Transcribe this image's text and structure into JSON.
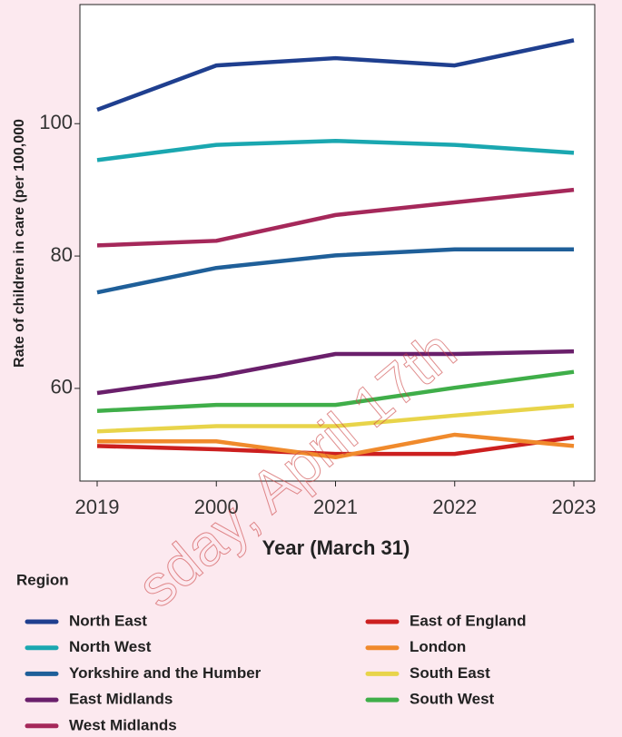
{
  "chart_data": {
    "type": "line",
    "x_label": "Year (March 31)",
    "y_label": "Rate of children in care (per 100,000",
    "categories": [
      "2019",
      "2000",
      "2021",
      "2022",
      "2023"
    ],
    "ylim": [
      46,
      118
    ],
    "yticks": [
      60,
      80,
      100
    ],
    "legend_title": "Region",
    "annotation": "sday, April 17th",
    "series": [
      {
        "name": "North East",
        "color": "#1f3f8f",
        "values": [
          102.1,
          108.8,
          109.9,
          108.8,
          112.6
        ]
      },
      {
        "name": "North West",
        "color": "#1aa7b0",
        "values": [
          94.5,
          96.8,
          97.4,
          96.8,
          95.6
        ]
      },
      {
        "name": "Yorkshire and the Humber",
        "color": "#1f5f99",
        "values": [
          74.5,
          78.2,
          80.1,
          81.0,
          81.0
        ]
      },
      {
        "name": "East Midlands",
        "color": "#6a1f6b",
        "values": [
          59.3,
          61.8,
          65.2,
          65.2,
          65.6
        ]
      },
      {
        "name": "West Midlands",
        "color": "#a5285a",
        "values": [
          81.6,
          82.3,
          86.2,
          88.1,
          90.0
        ]
      },
      {
        "name": "East of England",
        "color": "#cc1f1f",
        "values": [
          51.3,
          50.8,
          50.1,
          50.1,
          52.6
        ]
      },
      {
        "name": "London",
        "color": "#f08a2c",
        "values": [
          52.0,
          52.0,
          49.6,
          53.0,
          51.3
        ]
      },
      {
        "name": "South East",
        "color": "#e8d44a",
        "values": [
          53.5,
          54.3,
          54.3,
          55.9,
          57.4
        ]
      },
      {
        "name": "South West",
        "color": "#3fae49",
        "values": [
          56.6,
          57.5,
          57.5,
          60.1,
          62.5
        ]
      }
    ]
  }
}
